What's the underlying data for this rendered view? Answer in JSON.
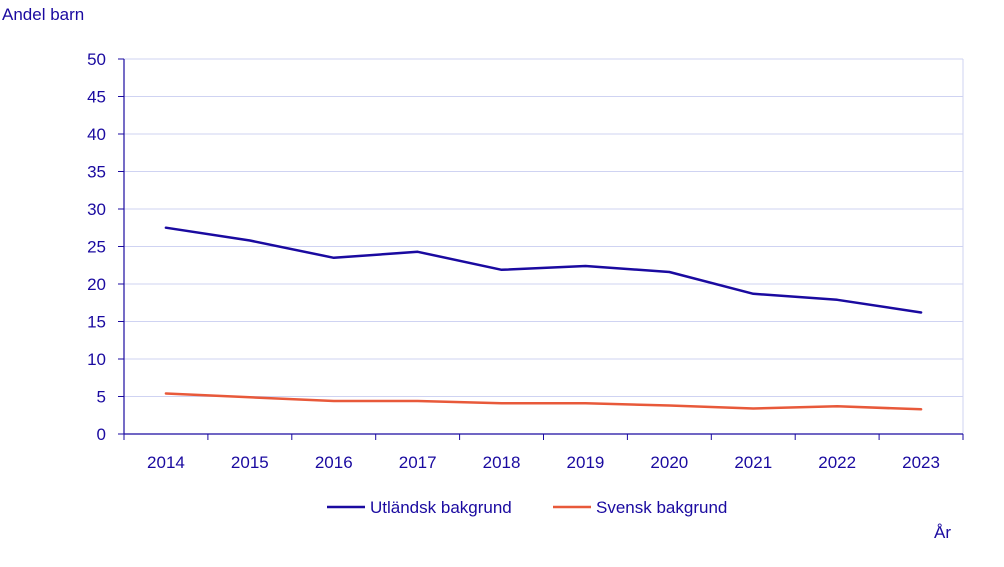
{
  "chart_data": {
    "type": "line",
    "ylabel": "Andel barn",
    "xlabel": "År",
    "ylim": [
      0,
      50
    ],
    "yticks": [
      "0",
      "5",
      "10",
      "15",
      "20",
      "25",
      "30",
      "35",
      "40",
      "45",
      "50"
    ],
    "grid": true,
    "legend_position": "bottom",
    "categories": [
      "2014",
      "2015",
      "2016",
      "2017",
      "2018",
      "2019",
      "2020",
      "2021",
      "2022",
      "2023"
    ],
    "series": [
      {
        "name": "Utländsk bakgrund",
        "color": "#1a0aa0",
        "values": [
          27.5,
          25.8,
          23.5,
          24.3,
          21.9,
          22.4,
          21.6,
          18.7,
          17.9,
          16.2
        ]
      },
      {
        "name": "Svensk bakgrund",
        "color": "#e8593a",
        "values": [
          5.4,
          4.9,
          4.4,
          4.4,
          4.1,
          4.1,
          3.8,
          3.4,
          3.7,
          3.3
        ]
      }
    ]
  },
  "colors": {
    "axis": "#1a0aa0",
    "text": "#1a0aa0",
    "grid": "#cfd3f2"
  }
}
